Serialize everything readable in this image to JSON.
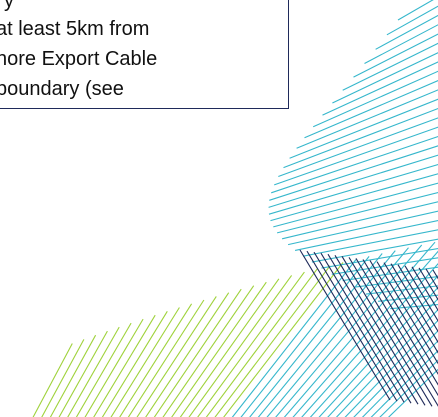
{
  "document": {
    "callout_lines": [
      "y",
      "at least 5km from",
      "hore Export Cable",
      "boundary (see"
    ]
  },
  "decoration": {
    "pattern": "radiating-lines",
    "colors": {
      "navy": "#1f2a5a",
      "teal": "#36b7cc",
      "lime": "#9fd23b"
    }
  }
}
